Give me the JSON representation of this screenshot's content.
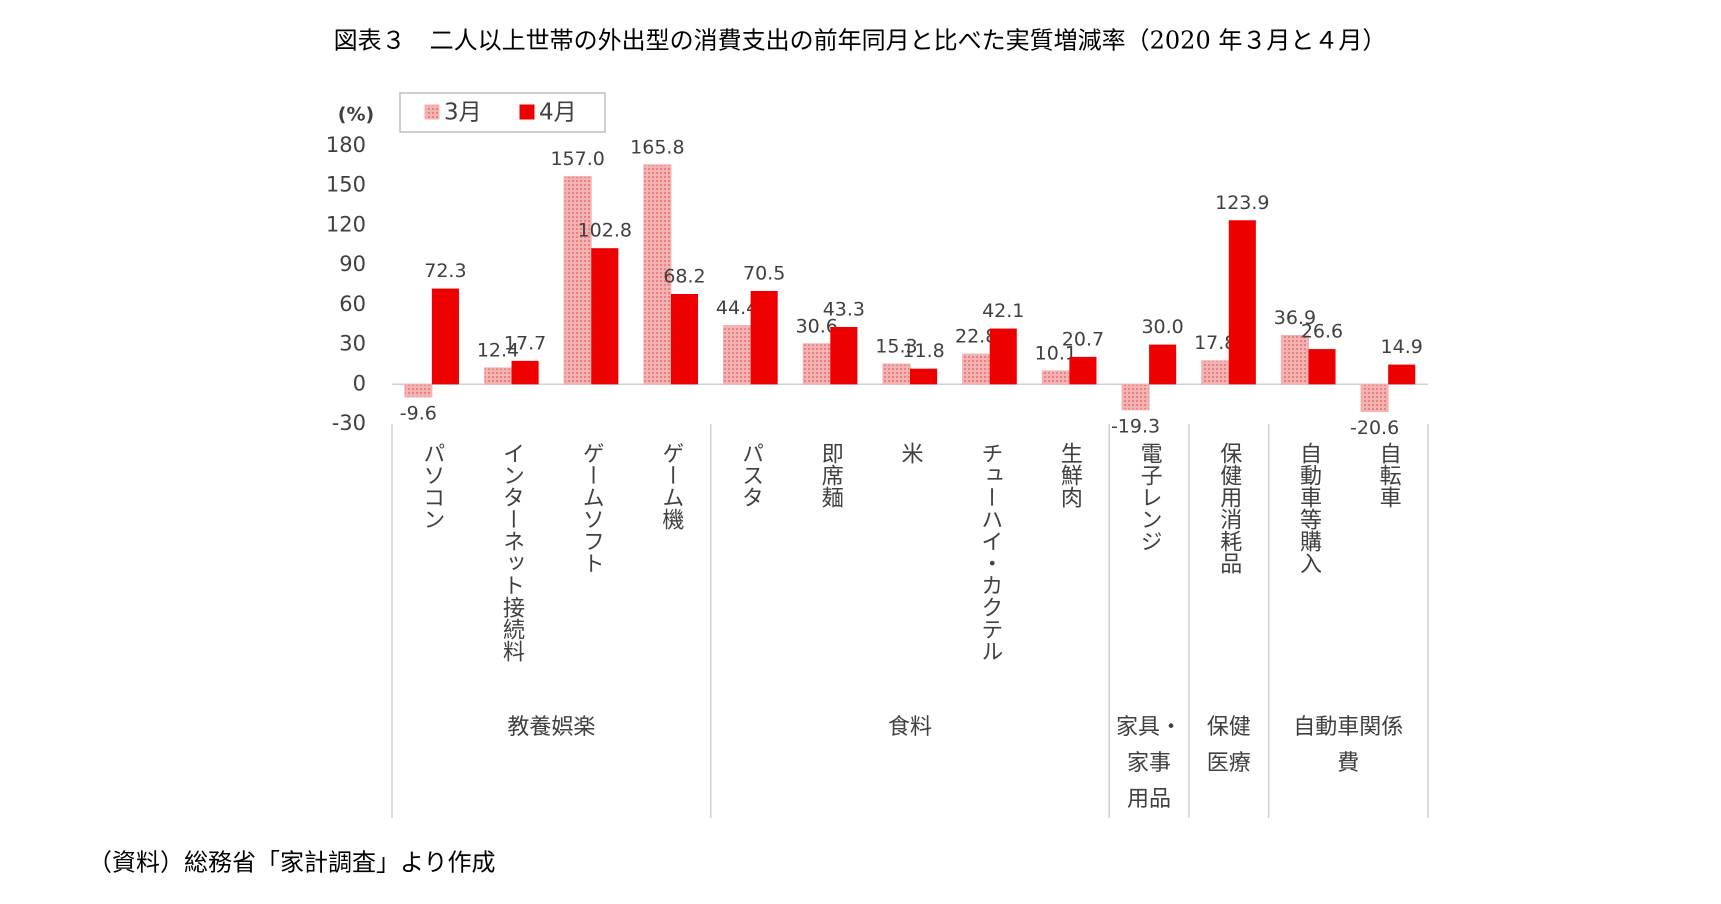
{
  "chart_data": {
    "type": "bar",
    "title": "図表３　二人以上世帯の外出型の消費支出の前年同月と比べた実質増減率（2020 年３月と４月）",
    "y_label": "(%)",
    "groups": [
      {
        "name": "教養娯楽",
        "categories": [
          "パソコン",
          "インターネット接続料",
          "ゲームソフト",
          "ゲーム機"
        ]
      },
      {
        "name": "食料",
        "categories": [
          "パスタ",
          "即席麺",
          "米",
          "チューハイ・カクテル",
          "生鮮肉"
        ]
      },
      {
        "name": "家具・\n家事\n用品",
        "categories": [
          "電子レンジ"
        ]
      },
      {
        "name": "保健\n医療",
        "categories": [
          "保健用消耗品"
        ]
      },
      {
        "name": "自動車関係\n費",
        "categories": [
          "自動車等購入",
          "自転車"
        ]
      }
    ],
    "series": [
      {
        "name": "3月",
        "color": "#f3b3b3",
        "pattern": true,
        "values": [
          -9.6,
          12.4,
          157.0,
          165.8,
          44.4,
          30.6,
          15.3,
          22.8,
          10.1,
          -19.3,
          17.8,
          36.9,
          -20.6
        ],
        "value_labels": [
          "-9.6",
          "12.4",
          "157.0",
          "165.8",
          "44.4",
          "30.6",
          "15.3",
          "22.8",
          "10.1",
          "-19.3",
          "17.8",
          "36.9",
          "-20.6"
        ]
      },
      {
        "name": "4月",
        "color": "#ee0000",
        "pattern": false,
        "values": [
          72.3,
          17.7,
          102.8,
          68.2,
          70.5,
          43.3,
          11.8,
          42.1,
          20.7,
          30.0,
          123.9,
          26.6,
          14.9
        ],
        "value_labels": [
          "72.3",
          "17.7",
          "102.8",
          "68.2",
          "70.5",
          "43.3",
          "11.8",
          "42.1",
          "20.7",
          "30.0",
          "123.9",
          "26.6",
          "14.9"
        ]
      }
    ],
    "ylim": [
      -30,
      180
    ],
    "yticks": [
      -30,
      0,
      30,
      60,
      90,
      120,
      150,
      180
    ],
    "legend": "top-left",
    "source": "（資料）総務省「家計調査」より作成"
  }
}
